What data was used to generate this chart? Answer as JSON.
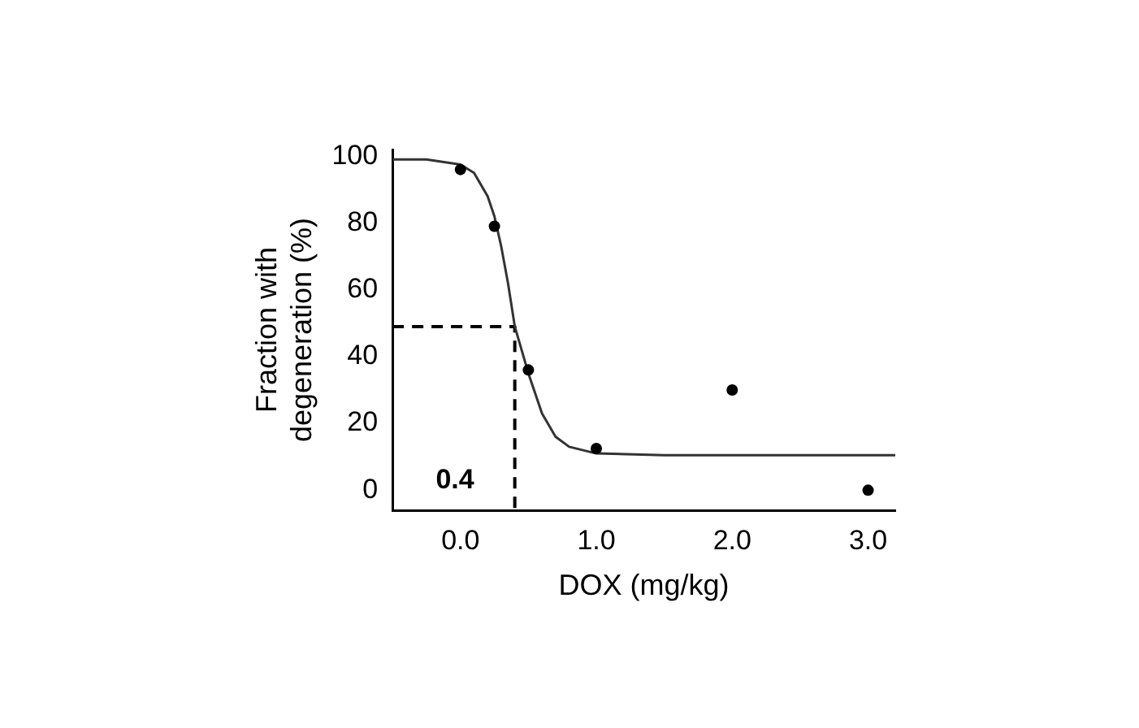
{
  "chart_data": {
    "type": "scatter",
    "xlabel": "DOX (mg/kg)",
    "ylabel": "Fraction with\ndegeneration (%)",
    "xlim": [
      -0.5,
      3.2
    ],
    "xticks": [
      {
        "value": 0,
        "label": "0.0"
      },
      {
        "value": 1,
        "label": "1.0"
      },
      {
        "value": 2,
        "label": "2.0"
      },
      {
        "value": 3,
        "label": "3.0"
      }
    ],
    "ylim": [
      -6,
      102
    ],
    "yticks": [
      0,
      20,
      40,
      60,
      80,
      100
    ],
    "grid": false,
    "legend": false,
    "series": [
      {
        "color": "#000000",
        "marker": "circle",
        "x": [
          0,
          0.25,
          0.5,
          1,
          2,
          3
        ],
        "values": [
          96,
          79,
          36,
          12.5,
          30,
          0
        ]
      },
      {
        "type": "line",
        "color": "#333333",
        "marker": "none",
        "line_style": "solid",
        "x": [
          -0.5,
          -0.25,
          0,
          0.1,
          0.2,
          0.25,
          0.3,
          0.35,
          0.4,
          0.45,
          0.5,
          0.6,
          0.7,
          0.8,
          1.0,
          1.5,
          3.2
        ],
        "values": [
          99,
          99,
          97.5,
          95,
          88,
          82,
          73,
          62,
          49,
          42,
          35,
          23,
          16,
          13,
          11,
          10.5,
          10.5
        ]
      },
      {
        "type": "line",
        "color": "#000000",
        "marker": "none",
        "line_style": "dashed",
        "x": [
          -0.5,
          0.4,
          0.4
        ],
        "values": [
          49,
          49,
          -6
        ]
      }
    ],
    "annotations": [
      {
        "text": "0.4",
        "x": 0.4,
        "y": 0
      }
    ]
  }
}
